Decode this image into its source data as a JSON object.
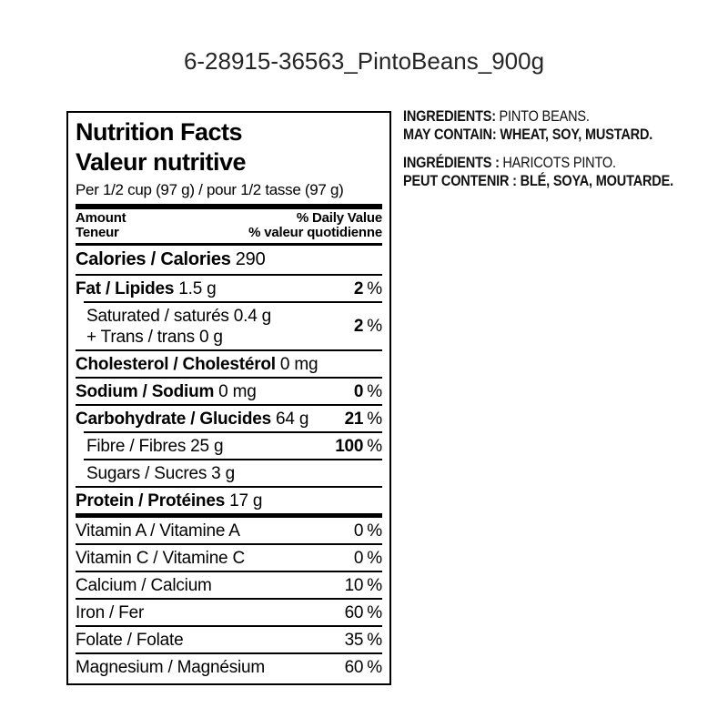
{
  "page": {
    "title": "6-28915-36563_PintoBeans_900g"
  },
  "colors": {
    "text": "#000000",
    "border": "#000000",
    "background": "#ffffff"
  },
  "nutrition": {
    "title_en": "Nutrition Facts",
    "title_fr": "Valeur nutritive",
    "serving": "Per 1/2 cup (97 g) / pour 1/2 tasse (97 g)",
    "header": {
      "amount_en": "Amount",
      "amount_fr": "Teneur",
      "dv_en": "% Daily Value",
      "dv_fr": "% valeur quotidienne"
    },
    "calories": {
      "label": "Calories / Calories",
      "value": "290"
    },
    "percent_sign": "%",
    "rows": [
      {
        "name": "Fat / Lipides",
        "amount": "1.5 g",
        "dv": "2"
      },
      {
        "name": "Saturated / saturés",
        "amount": "0.4 g",
        "name2": "+ Trans / trans",
        "amount2": "0 g",
        "dv": "2"
      },
      {
        "name": "Cholesterol / Cholestérol",
        "amount": "0 mg"
      },
      {
        "name": "Sodium / Sodium",
        "amount": "0 mg",
        "dv": "0"
      },
      {
        "name": "Carbohydrate / Glucides",
        "amount": "64 g",
        "dv": "21"
      },
      {
        "name": "Fibre / Fibres",
        "amount": "25 g",
        "dv": "100"
      },
      {
        "name": "Sugars / Sucres",
        "amount": "3 g"
      },
      {
        "name": "Protein / Protéines",
        "amount": "17 g"
      }
    ],
    "micros": [
      {
        "name": "Vitamin A / Vitamine A",
        "dv": "0"
      },
      {
        "name": "Vitamin C / Vitamine C",
        "dv": "0"
      },
      {
        "name": "Calcium / Calcium",
        "dv": "10"
      },
      {
        "name": "Iron / Fer",
        "dv": "60"
      },
      {
        "name": "Folate / Folate",
        "dv": "35"
      },
      {
        "name": "Magnesium / Magnésium",
        "dv": "60"
      }
    ]
  },
  "ingredients": {
    "en_label": "INGREDIENTS:",
    "en_value": "PINTO BEANS.",
    "en_allergen": "MAY CONTAIN: WHEAT, SOY, MUSTARD.",
    "fr_label": "INGRÉDIENTS :",
    "fr_value": "HARICOTS PINTO.",
    "fr_allergen": "PEUT CONTENIR : BLÉ, SOYA, MOUTARDE."
  }
}
